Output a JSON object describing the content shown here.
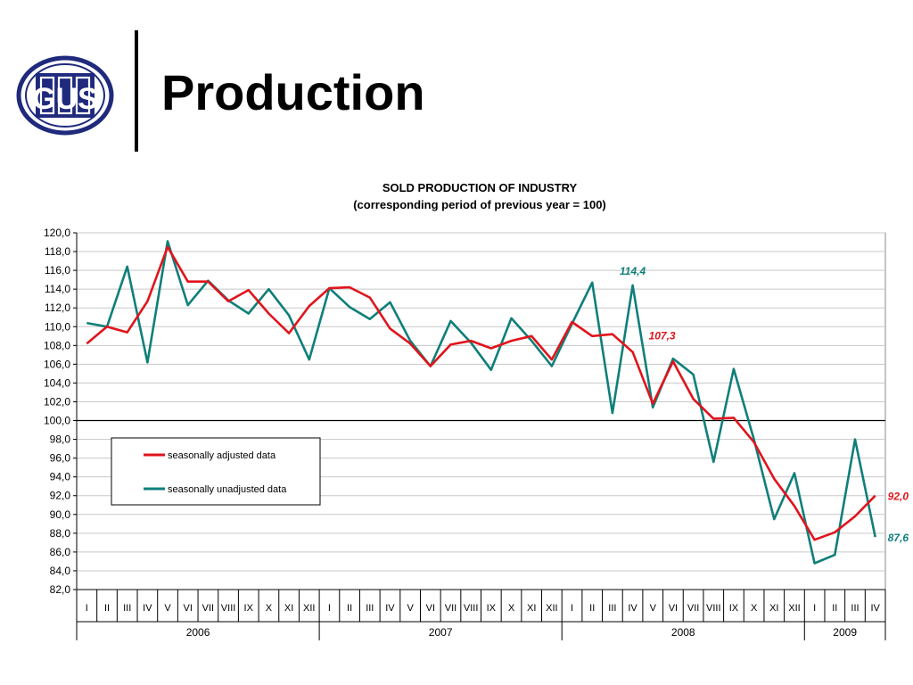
{
  "slide": {
    "title": "Production",
    "logo_text": "GUS"
  },
  "colors": {
    "adjusted": "#e0141c",
    "unadjusted": "#0f7f7a",
    "logo_blue": "#1f2a7d"
  },
  "chart_data": {
    "type": "line",
    "title": "SOLD PRODUCTION OF INDUSTRY",
    "subtitle": "(corresponding period of previous year = 100)",
    "ylim": [
      82.0,
      120.0
    ],
    "ytick_step": 2.0,
    "baseline": 100.0,
    "yticks": [
      "82,0",
      "84,0",
      "86,0",
      "88,0",
      "90,0",
      "92,0",
      "94,0",
      "96,0",
      "98,0",
      "100,0",
      "102,0",
      "104,0",
      "106,0",
      "108,0",
      "110,0",
      "112,0",
      "114,0",
      "116,0",
      "118,0",
      "120,0"
    ],
    "grid": "horizontal",
    "legend_position": "lower-left",
    "categories": [
      "I",
      "II",
      "III",
      "IV",
      "V",
      "VI",
      "VII",
      "VIII",
      "IX",
      "X",
      "XI",
      "XII",
      "I",
      "II",
      "III",
      "IV",
      "V",
      "VI",
      "VII",
      "VIII",
      "IX",
      "X",
      "XI",
      "XII",
      "I",
      "II",
      "III",
      "IV",
      "V",
      "VI",
      "VII",
      "VIII",
      "IX",
      "X",
      "XI",
      "XII",
      "I",
      "II",
      "III",
      "IV"
    ],
    "years": [
      {
        "label": "2006",
        "count": 12
      },
      {
        "label": "2007",
        "count": 12
      },
      {
        "label": "2008",
        "count": 12
      },
      {
        "label": "2009",
        "count": 4
      }
    ],
    "series": [
      {
        "name": "seasonally adjusted data",
        "color": "#e0141c",
        "values": [
          108.2,
          110.0,
          109.4,
          112.7,
          118.5,
          114.8,
          114.8,
          112.7,
          113.9,
          111.4,
          109.3,
          112.2,
          114.1,
          114.2,
          113.1,
          109.8,
          108.2,
          105.8,
          108.1,
          108.5,
          107.7,
          108.5,
          109.0,
          106.5,
          110.5,
          109.0,
          109.2,
          107.3,
          101.8,
          106.3,
          102.3,
          100.2,
          100.3,
          97.7,
          93.8,
          90.9,
          87.3,
          88.1,
          89.8,
          92.0
        ]
      },
      {
        "name": "seasonally unadjusted data",
        "color": "#0f7f7a",
        "values": [
          110.4,
          110.0,
          116.4,
          106.2,
          119.1,
          112.3,
          114.9,
          112.8,
          111.4,
          114.0,
          111.2,
          106.5,
          114.1,
          112.1,
          110.8,
          112.6,
          108.5,
          105.8,
          110.6,
          108.3,
          105.4,
          110.9,
          108.5,
          105.8,
          110.3,
          114.7,
          100.8,
          114.4,
          101.4,
          106.6,
          104.9,
          95.6,
          105.5,
          98.0,
          89.5,
          94.4,
          84.8,
          85.7,
          98.0,
          87.6
        ]
      }
    ],
    "annotations": [
      {
        "text": "114,4",
        "series": 1,
        "index": 27
      },
      {
        "text": "107,3",
        "series": 0,
        "index": 27
      },
      {
        "text": "92,0",
        "series": 0,
        "index": 39
      },
      {
        "text": "87,6",
        "series": 1,
        "index": 39
      }
    ]
  }
}
